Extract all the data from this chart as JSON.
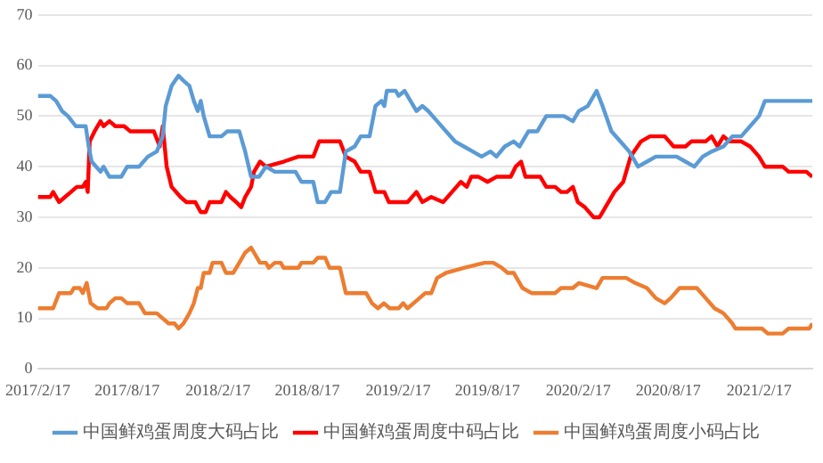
{
  "chart_data": {
    "type": "line",
    "xlim": [
      "2017-02-17",
      "2021-06-05"
    ],
    "xticks": [
      {
        "value": "2017-02-17",
        "label": "2017/2/17"
      },
      {
        "value": "2017-08-17",
        "label": "2017/8/17"
      },
      {
        "value": "2018-02-17",
        "label": "2018/2/17"
      },
      {
        "value": "2018-08-17",
        "label": "2018/8/17"
      },
      {
        "value": "2019-02-17",
        "label": "2019/2/17"
      },
      {
        "value": "2019-08-17",
        "label": "2019/8/17"
      },
      {
        "value": "2020-02-17",
        "label": "2020/2/17"
      },
      {
        "value": "2020-08-17",
        "label": "2020/8/17"
      },
      {
        "value": "2021-02-17",
        "label": "2021/2/17"
      }
    ],
    "ylim": [
      0,
      70
    ],
    "yticks": [
      0,
      10,
      20,
      30,
      40,
      50,
      60,
      70
    ],
    "grid": "y",
    "legend": "bottom",
    "series": [
      {
        "name": "中国鲜鸡蛋周度大码占比",
        "color": "#5b9bd5",
        "x": [
          "2017-02-17",
          "2017-03-14",
          "2017-03-26",
          "2017-04-07",
          "2017-04-19",
          "2017-05-05",
          "2017-05-25",
          "2017-05-31",
          "2017-06-06",
          "2017-06-24",
          "2017-06-30",
          "2017-07-12",
          "2017-08-05",
          "2017-08-17",
          "2017-09-10",
          "2017-09-28",
          "2017-10-16",
          "2017-10-28",
          "2017-11-03",
          "2017-11-15",
          "2017-11-29",
          "2017-12-09",
          "2017-12-21",
          "2017-12-30",
          "2018-01-07",
          "2018-01-13",
          "2018-01-19",
          "2018-01-31",
          "2018-02-24",
          "2018-03-08",
          "2018-04-01",
          "2018-04-13",
          "2018-04-25",
          "2018-05-11",
          "2018-05-25",
          "2018-06-12",
          "2018-07-24",
          "2018-08-05",
          "2018-08-29",
          "2018-09-07",
          "2018-09-22",
          "2018-10-04",
          "2018-10-22",
          "2018-11-03",
          "2018-11-21",
          "2018-12-03",
          "2018-12-21",
          "2019-01-02",
          "2019-01-14",
          "2019-01-20",
          "2019-01-25",
          "2019-02-12",
          "2019-02-18",
          "2019-03-02",
          "2019-03-14",
          "2019-03-26",
          "2019-04-07",
          "2019-04-19",
          "2019-05-07",
          "2019-05-25",
          "2019-06-12",
          "2019-06-30",
          "2019-07-18",
          "2019-08-05",
          "2019-08-23",
          "2019-09-04",
          "2019-09-21",
          "2019-10-09",
          "2019-10-21",
          "2019-11-08",
          "2019-11-26",
          "2019-12-14",
          "2020-01-19",
          "2020-02-06",
          "2020-02-18",
          "2020-03-07",
          "2020-03-25",
          "2020-04-06",
          "2020-04-24",
          "2020-05-12",
          "2020-05-30",
          "2020-06-17",
          "2020-07-05",
          "2020-07-23",
          "2020-09-03",
          "2020-09-21",
          "2020-10-09",
          "2020-10-26",
          "2020-11-13",
          "2020-12-07",
          "2020-12-25",
          "2021-01-12",
          "2021-01-30",
          "2021-02-17",
          "2021-03-01",
          "2021-06-05"
        ],
        "values": [
          54,
          54,
          53,
          51,
          50,
          48,
          48,
          44,
          41,
          39,
          40,
          38,
          38,
          40,
          40,
          42,
          43,
          46,
          52,
          56,
          58,
          57,
          56,
          53,
          51,
          53,
          50,
          46,
          46,
          47,
          47,
          43,
          38,
          38,
          40,
          39,
          39,
          37,
          37,
          33,
          33,
          35,
          35,
          43,
          44,
          46,
          46,
          52,
          53,
          52,
          55,
          55,
          54,
          55,
          53,
          51,
          52,
          51,
          49,
          47,
          45,
          44,
          43,
          42,
          43,
          42,
          44,
          45,
          44,
          47,
          47,
          50,
          50,
          49,
          51,
          52,
          55,
          52,
          47,
          45,
          43,
          40,
          41,
          42,
          42,
          41,
          40,
          42,
          43,
          44,
          46,
          46,
          48,
          50,
          53,
          53
        ]
      },
      {
        "name": "中国鲜鸡蛋周度中码占比",
        "color": "#ff0000",
        "x": [
          "2017-02-17",
          "2017-03-14",
          "2017-03-20",
          "2017-04-01",
          "2017-04-13",
          "2017-04-25",
          "2017-05-07",
          "2017-05-19",
          "2017-05-25",
          "2017-05-29",
          "2017-06-02",
          "2017-06-12",
          "2017-06-24",
          "2017-06-30",
          "2017-07-12",
          "2017-07-24",
          "2017-08-11",
          "2017-08-23",
          "2017-10-10",
          "2017-10-22",
          "2017-10-28",
          "2017-11-05",
          "2017-11-15",
          "2017-12-03",
          "2017-12-15",
          "2018-01-02",
          "2018-01-13",
          "2018-01-23",
          "2018-01-31",
          "2018-02-24",
          "2018-03-05",
          "2018-03-14",
          "2018-03-26",
          "2018-04-05",
          "2018-04-13",
          "2018-04-25",
          "2018-05-01",
          "2018-05-13",
          "2018-05-25",
          "2018-06-30",
          "2018-07-30",
          "2018-08-29",
          "2018-09-10",
          "2018-10-22",
          "2018-11-03",
          "2018-11-21",
          "2018-12-03",
          "2018-12-21",
          "2019-01-02",
          "2019-01-20",
          "2019-01-29",
          "2019-03-08",
          "2019-03-26",
          "2019-04-07",
          "2019-04-25",
          "2019-05-19",
          "2019-06-06",
          "2019-06-24",
          "2019-07-06",
          "2019-07-15",
          "2019-07-30",
          "2019-08-17",
          "2019-09-04",
          "2019-10-03",
          "2019-10-13",
          "2019-10-24",
          "2019-11-02",
          "2019-12-02",
          "2019-12-14",
          "2020-01-01",
          "2020-01-13",
          "2020-01-25",
          "2020-02-06",
          "2020-02-16",
          "2020-03-01",
          "2020-03-19",
          "2020-03-31",
          "2020-04-12",
          "2020-04-30",
          "2020-05-18",
          "2020-06-02",
          "2020-06-23",
          "2020-07-11",
          "2020-08-10",
          "2020-08-28",
          "2020-09-21",
          "2020-10-03",
          "2020-11-01",
          "2020-11-13",
          "2020-11-25",
          "2020-12-07",
          "2020-12-19",
          "2021-01-12",
          "2021-01-30",
          "2021-02-17",
          "2021-03-01",
          "2021-04-06",
          "2021-04-18",
          "2021-05-24",
          "2021-06-05"
        ],
        "values": [
          34,
          34,
          35,
          33,
          34,
          35,
          36,
          36,
          37,
          35,
          45,
          47,
          49,
          48,
          49,
          48,
          48,
          47,
          47,
          44,
          48,
          40,
          36,
          34,
          33,
          33,
          31,
          31,
          33,
          33,
          35,
          34,
          33,
          32,
          34,
          36,
          39,
          41,
          40,
          41,
          42,
          42,
          45,
          45,
          42,
          41,
          39,
          39,
          35,
          35,
          33,
          33,
          35,
          33,
          34,
          33,
          35,
          37,
          36,
          38,
          38,
          37,
          38,
          38,
          40,
          41,
          38,
          38,
          36,
          36,
          35,
          35,
          36,
          33,
          32,
          30,
          30,
          32,
          35,
          37,
          42,
          45,
          46,
          46,
          44,
          44,
          45,
          45,
          46,
          44,
          46,
          45,
          45,
          44,
          42,
          40,
          40,
          39,
          39,
          38
        ]
      },
      {
        "name": "中国鲜鸡蛋周度小码占比",
        "color": "#ed7d31",
        "x": [
          "2017-02-17",
          "2017-03-20",
          "2017-04-01",
          "2017-04-25",
          "2017-05-01",
          "2017-05-13",
          "2017-05-19",
          "2017-05-27",
          "2017-06-04",
          "2017-06-18",
          "2017-07-06",
          "2017-07-12",
          "2017-07-24",
          "2017-08-05",
          "2017-08-17",
          "2017-09-10",
          "2017-09-22",
          "2017-10-16",
          "2017-10-28",
          "2017-11-09",
          "2017-11-21",
          "2017-11-29",
          "2017-12-09",
          "2017-12-21",
          "2017-12-30",
          "2018-01-07",
          "2018-01-13",
          "2018-01-19",
          "2018-01-31",
          "2018-02-06",
          "2018-02-24",
          "2018-03-05",
          "2018-03-20",
          "2018-04-01",
          "2018-04-13",
          "2018-04-25",
          "2018-05-01",
          "2018-05-13",
          "2018-05-25",
          "2018-05-31",
          "2018-06-12",
          "2018-06-24",
          "2018-06-30",
          "2018-07-30",
          "2018-08-05",
          "2018-08-29",
          "2018-09-07",
          "2018-09-22",
          "2018-10-01",
          "2018-10-22",
          "2018-11-03",
          "2018-12-14",
          "2018-12-26",
          "2019-01-07",
          "2019-01-19",
          "2019-01-31",
          "2019-02-18",
          "2019-02-27",
          "2019-03-08",
          "2019-03-20",
          "2019-04-01",
          "2019-04-13",
          "2019-04-25",
          "2019-05-07",
          "2019-05-25",
          "2019-06-30",
          "2019-08-11",
          "2019-08-29",
          "2019-09-15",
          "2019-09-27",
          "2019-10-09",
          "2019-10-27",
          "2019-11-14",
          "2020-01-01",
          "2020-01-13",
          "2020-02-06",
          "2020-02-18",
          "2020-03-25",
          "2020-04-06",
          "2020-04-18",
          "2020-05-24",
          "2020-06-11",
          "2020-07-05",
          "2020-07-23",
          "2020-08-10",
          "2020-08-22",
          "2020-09-09",
          "2020-09-27",
          "2020-10-14",
          "2020-11-01",
          "2020-11-19",
          "2020-12-07",
          "2020-12-25",
          "2020-12-31",
          "2021-02-23",
          "2021-03-07",
          "2021-04-06",
          "2021-04-18",
          "2021-05-30",
          "2021-06-05"
        ],
        "values": [
          12,
          12,
          15,
          15,
          16,
          16,
          15,
          17,
          13,
          12,
          12,
          13,
          14,
          14,
          13,
          13,
          11,
          11,
          10,
          9,
          9,
          8,
          9,
          11,
          13,
          16,
          16,
          19,
          19,
          21,
          21,
          19,
          19,
          21,
          23,
          24,
          23,
          21,
          21,
          20,
          21,
          21,
          20,
          20,
          21,
          21,
          22,
          22,
          20,
          20,
          15,
          15,
          13,
          12,
          13,
          12,
          12,
          13,
          12,
          13,
          14,
          15,
          15,
          18,
          19,
          20,
          21,
          21,
          20,
          19,
          19,
          16,
          15,
          15,
          16,
          16,
          17,
          16,
          18,
          18,
          18,
          17,
          16,
          14,
          13,
          14,
          16,
          16,
          16,
          14,
          12,
          11,
          9,
          8,
          8,
          7,
          7,
          8,
          8,
          9
        ]
      }
    ]
  }
}
